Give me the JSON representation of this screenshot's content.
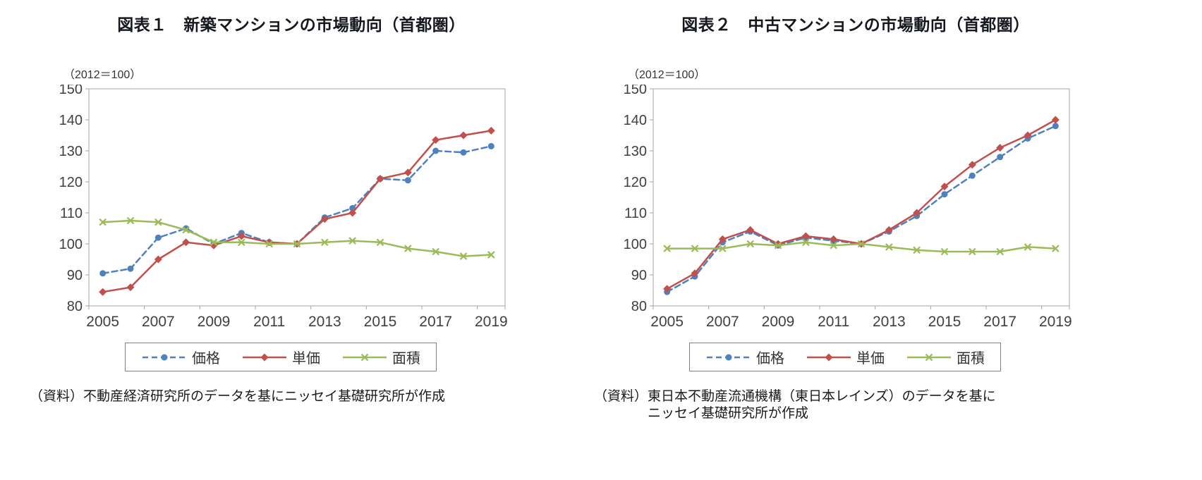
{
  "page": {
    "background": "#ffffff"
  },
  "chart_data": [
    {
      "id": "new-condo-market",
      "type": "line",
      "title": "図表１　新築マンションの市場動向（首都圏）",
      "axis_unit_note": "（2012＝100）",
      "x": [
        2005,
        2006,
        2007,
        2008,
        2009,
        2010,
        2011,
        2012,
        2013,
        2014,
        2015,
        2016,
        2017,
        2018,
        2019
      ],
      "x_label_interval": 2,
      "ylim": [
        80,
        150
      ],
      "ytick_step": 10,
      "grid": false,
      "legend_position": "bottom",
      "series": [
        {
          "name": "価格",
          "color": "#4F81BD",
          "line": "dashed",
          "marker": "circle",
          "values": [
            90.5,
            92,
            102,
            105,
            100,
            103.5,
            100.5,
            100,
            108.5,
            111.5,
            121,
            120.5,
            130,
            129.5,
            131.5
          ]
        },
        {
          "name": "単価",
          "color": "#C0504D",
          "line": "solid",
          "marker": "diamond",
          "values": [
            84.5,
            86,
            95,
            100.5,
            99.5,
            102.5,
            100.5,
            100,
            108,
            110,
            121,
            123,
            133.5,
            135,
            136.5
          ]
        },
        {
          "name": "面積",
          "color": "#9BBB59",
          "line": "solid",
          "marker": "x",
          "values": [
            107,
            107.5,
            107,
            104.5,
            100.5,
            100.5,
            100,
            100,
            100.5,
            101,
            100.5,
            98.5,
            97.5,
            96,
            96.5
          ]
        }
      ],
      "source_lines": [
        "（資料）不動産経済研究所のデータを基にニッセイ基礎研究所が作成"
      ]
    },
    {
      "id": "used-condo-market",
      "type": "line",
      "title": "図表２　中古マンションの市場動向（首都圏）",
      "axis_unit_note": "（2012＝100）",
      "x": [
        2005,
        2006,
        2007,
        2008,
        2009,
        2010,
        2011,
        2012,
        2013,
        2014,
        2015,
        2016,
        2017,
        2018,
        2019
      ],
      "x_label_interval": 2,
      "ylim": [
        80,
        150
      ],
      "ytick_step": 10,
      "grid": false,
      "legend_position": "bottom",
      "series": [
        {
          "name": "価格",
          "color": "#4F81BD",
          "line": "dashed",
          "marker": "circle",
          "values": [
            84.5,
            89.5,
            100.5,
            104,
            99.5,
            102,
            101,
            100,
            104,
            109,
            116,
            122,
            128,
            134,
            138
          ]
        },
        {
          "name": "単価",
          "color": "#C0504D",
          "line": "solid",
          "marker": "diamond",
          "values": [
            85.5,
            90.5,
            101.5,
            104.5,
            100,
            102.5,
            101.5,
            100,
            104.5,
            110,
            118.5,
            125.5,
            131,
            135,
            140
          ]
        },
        {
          "name": "面積",
          "color": "#9BBB59",
          "line": "solid",
          "marker": "x",
          "values": [
            98.5,
            98.5,
            98.5,
            100,
            99.5,
            100.5,
            99.5,
            100,
            99,
            98,
            97.5,
            97.5,
            97.5,
            99,
            98.5
          ]
        }
      ],
      "source_lines": [
        "（資料）東日本不動産流通機構（東日本レインズ）のデータを基に",
        "ニッセイ基礎研究所が作成"
      ]
    }
  ]
}
